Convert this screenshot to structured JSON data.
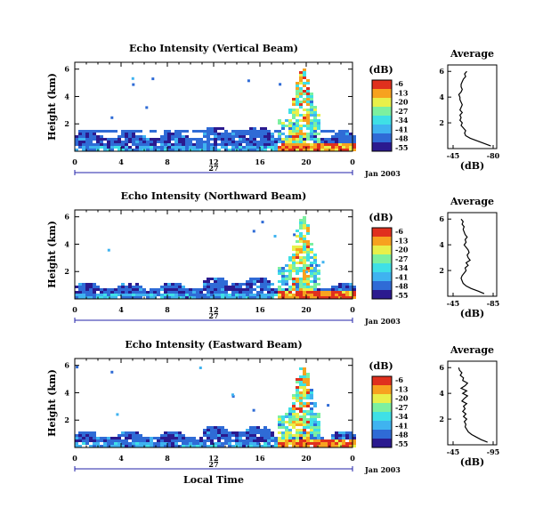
{
  "chart_data": [
    {
      "type": "heatmap",
      "title": "Echo Intensity (Vertical Beam)",
      "ylabel": "Height (km)",
      "xlim": [
        0,
        24
      ],
      "ylim": [
        0,
        6.5
      ],
      "xticks": [
        "0",
        "4",
        "8",
        "12",
        "16",
        "20",
        "0"
      ],
      "yticks": [
        "2",
        "4",
        "6"
      ],
      "date_day": "27",
      "date_month": "Jan 2003",
      "colorbar": {
        "label": "(dB)",
        "ticks": [
          "-6",
          "-13",
          "-20",
          "-27",
          "-34",
          "-41",
          "-48",
          "-55"
        ]
      },
      "profile": {
        "title": "Average",
        "xlabel": "(dB)",
        "xticks": [
          "-45",
          "-80"
        ],
        "yticks": [
          "2",
          "4",
          "6"
        ],
        "heights_km": [
          0.2,
          0.4,
          0.6,
          0.8,
          1.0,
          1.2,
          1.4,
          1.6,
          1.8,
          2.0,
          2.2,
          2.4,
          2.6,
          2.8,
          3.0,
          3.2,
          3.4,
          3.6,
          3.8,
          4.0,
          4.2,
          4.4,
          4.6,
          4.8,
          5.0,
          5.2,
          5.4,
          5.6,
          5.8,
          6.0
        ],
        "values_db": [
          -78,
          -72,
          -66,
          -60,
          -56,
          -55,
          -56,
          -54,
          -52,
          -53,
          -51,
          -52,
          -51,
          -53,
          -51,
          -52,
          -53,
          -52,
          -51,
          -51,
          -50,
          -52,
          -53,
          -52,
          -52,
          -53,
          -54,
          -56,
          -55,
          -57
        ]
      }
    },
    {
      "type": "heatmap",
      "title": "Echo Intensity (Northward Beam)",
      "ylabel": "Height (km)",
      "xlim": [
        0,
        24
      ],
      "ylim": [
        0,
        6.5
      ],
      "xticks": [
        "0",
        "4",
        "8",
        "12",
        "16",
        "20",
        "0"
      ],
      "yticks": [
        "2",
        "4",
        "6"
      ],
      "date_day": "27",
      "date_month": "Jan 2003",
      "colorbar": {
        "label": "(dB)",
        "ticks": [
          "-6",
          "-13",
          "-20",
          "-27",
          "-34",
          "-41",
          "-48",
          "-55"
        ]
      },
      "profile": {
        "title": "Average",
        "xlabel": "(dB)",
        "xticks": [
          "-45",
          "-85"
        ],
        "yticks": [
          "2",
          "4",
          "6"
        ],
        "heights_km": [
          0.2,
          0.4,
          0.6,
          0.8,
          1.0,
          1.2,
          1.4,
          1.6,
          1.8,
          2.0,
          2.2,
          2.4,
          2.6,
          2.8,
          3.0,
          3.2,
          3.4,
          3.6,
          3.8,
          4.0,
          4.2,
          4.4,
          4.6,
          4.8,
          5.0,
          5.2,
          5.4,
          5.6,
          5.8,
          6.0
        ],
        "values_db": [
          -76,
          -70,
          -63,
          -58,
          -55,
          -54,
          -53,
          -54,
          -56,
          -58,
          -57,
          -60,
          -58,
          -62,
          -60,
          -59,
          -61,
          -60,
          -58,
          -56,
          -58,
          -57,
          -59,
          -57,
          -56,
          -55,
          -56,
          -54,
          -55,
          -53
        ]
      }
    },
    {
      "type": "heatmap",
      "title": "Echo Intensity (Eastward Beam)",
      "ylabel": "Height (km)",
      "xlabel": "Local Time",
      "xlim": [
        0,
        24
      ],
      "ylim": [
        0,
        6.5
      ],
      "xticks": [
        "0",
        "4",
        "8",
        "12",
        "16",
        "20",
        "0"
      ],
      "yticks": [
        "2",
        "4",
        "6"
      ],
      "date_day": "27",
      "date_month": "Jan 2003",
      "colorbar": {
        "label": "(dB)",
        "ticks": [
          "-6",
          "-13",
          "-20",
          "-27",
          "-34",
          "-41",
          "-48",
          "-55"
        ]
      },
      "profile": {
        "title": "Average",
        "xlabel": "(dB)",
        "xticks": [
          "-45",
          "-95"
        ],
        "yticks": [
          "2",
          "4",
          "6"
        ],
        "heights_km": [
          0.2,
          0.4,
          0.6,
          0.8,
          1.0,
          1.2,
          1.4,
          1.6,
          1.8,
          2.0,
          2.2,
          2.4,
          2.6,
          2.8,
          3.0,
          3.2,
          3.4,
          3.6,
          3.8,
          4.0,
          4.2,
          4.4,
          4.6,
          4.8,
          5.0,
          5.2,
          5.4,
          5.6,
          5.8,
          6.0
        ],
        "values_db": [
          -88,
          -80,
          -74,
          -68,
          -64,
          -62,
          -60,
          -61,
          -59,
          -62,
          -58,
          -61,
          -57,
          -60,
          -58,
          -62,
          -56,
          -59,
          -63,
          -57,
          -62,
          -55,
          -60,
          -63,
          -57,
          -58,
          -54,
          -56,
          -53,
          -52
        ]
      }
    }
  ],
  "heatmap_features": [
    {
      "start_hour": 0,
      "end_hour": 24,
      "top_km": 1.2,
      "intensity_db": -50,
      "note": "continuous low-level clutter layer"
    },
    {
      "start_hour": 17.5,
      "end_hour": 20.8,
      "top_km": 6.0,
      "intensity_db": -25,
      "note": "deep convective echo column"
    },
    {
      "start_hour": 17.5,
      "end_hour": 24,
      "top_km": 0.6,
      "intensity_db": -10,
      "note": "strong near-surface rain echo"
    }
  ],
  "colors": {
    "scale": [
      "#2b1a8f",
      "#2f6bd6",
      "#3fb3f0",
      "#3fe0e6",
      "#7cf0a0",
      "#e8f04a",
      "#f7a21f",
      "#e0301e"
    ]
  }
}
